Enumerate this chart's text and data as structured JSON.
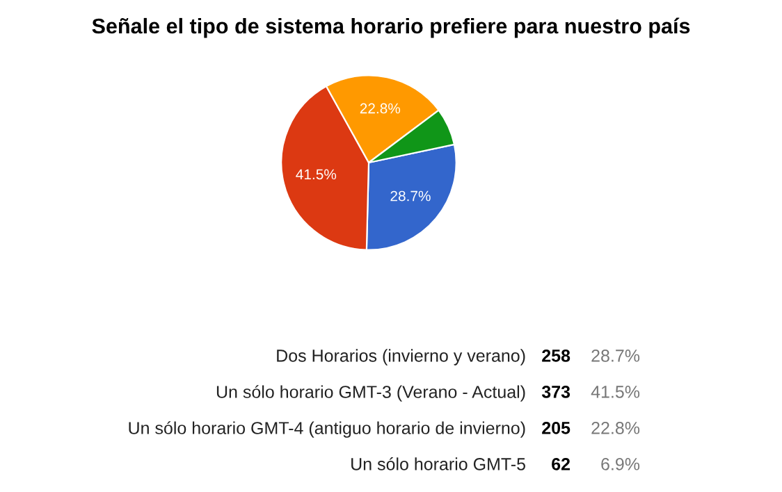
{
  "chart_data": [
    {
      "type": "pie",
      "title": "Señale el tipo de sistema horario prefiere para nuestro país",
      "categories": [
        null,
        null,
        null,
        null
      ],
      "values": [
        28.7,
        41.5,
        22.8,
        6.9
      ],
      "colors": [
        "#3366cc",
        "#dc3912",
        "#ff9900",
        "#109618"
      ],
      "value_labels": [
        "28.7%",
        "41.5%",
        "22.8%",
        null
      ]
    },
    {
      "type": "other",
      "categories": [
        "Dos Horarios (invierno y verano)",
        "Un sólo horario GMT-3 (Verano - Actual)",
        "Un sólo horario GMT-4 (antiguo horario de invierno)",
        "Un sólo horario GMT-5"
      ],
      "values": [
        258,
        373,
        205,
        62
      ],
      "data_labels": true,
      "annotations": [
        "28.7%",
        "41.5%",
        "22.8%",
        "6.9%"
      ]
    }
  ]
}
